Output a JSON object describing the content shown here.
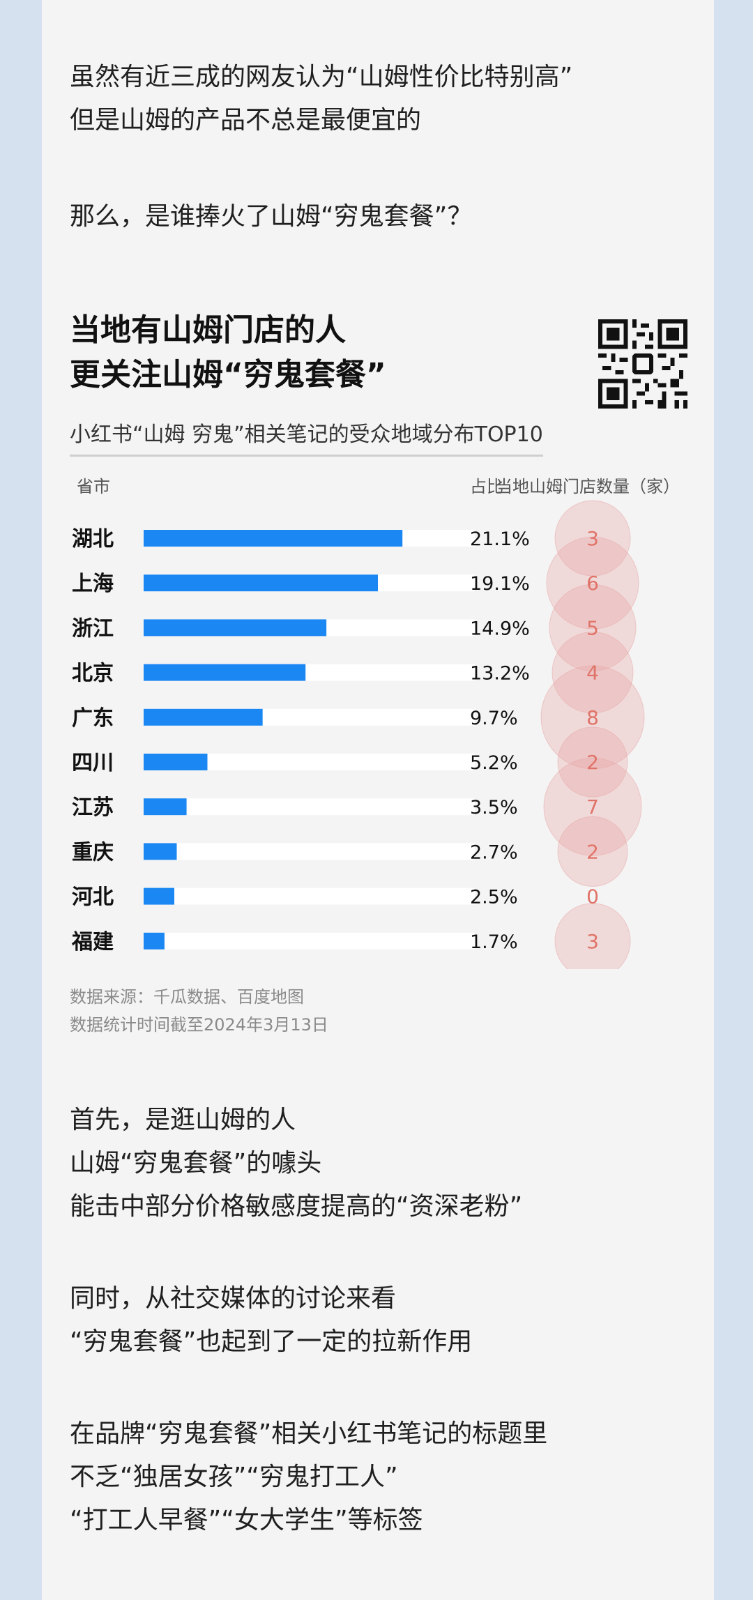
{
  "intro": {
    "line1": "虽然有近三成的网友认为“山姆性价比特别高”",
    "line2": "但是山姆的产品不总是最便宜的",
    "line3": "那么，是谁捧火了山姆“穷鬼套餐”？"
  },
  "chart_title": {
    "line1": "当地有山姆门店的人",
    "line2": "更关注山姆“穷鬼套餐”"
  },
  "chart_data": {
    "type": "bar",
    "subtitle": "小红书“山姆 穷鬼”相关笔记的受众地域分布TOP10",
    "col_province": "省市",
    "col_share": "占比",
    "col_stores": "当地山姆门店数量（家）",
    "categories": [
      "湖北",
      "上海",
      "浙江",
      "北京",
      "广东",
      "四川",
      "江苏",
      "重庆",
      "河北",
      "福建"
    ],
    "values": [
      21.1,
      19.1,
      14.9,
      13.2,
      9.7,
      5.2,
      3.5,
      2.7,
      2.5,
      1.7
    ],
    "value_labels": [
      "21.1%",
      "19.1%",
      "14.9%",
      "13.2%",
      "9.7%",
      "5.2%",
      "3.5%",
      "2.7%",
      "2.5%",
      "1.7%"
    ],
    "stores": [
      3,
      6,
      5,
      4,
      8,
      2,
      7,
      2,
      0,
      3
    ],
    "xlim": [
      0,
      27
    ],
    "bar_color": "#1a87f2",
    "bubble_color": "#e8a6a6",
    "bubble_text_color": "#e07368"
  },
  "source": {
    "line1": "数据来源：千瓜数据、百度地图",
    "line2": "数据统计时间截至2024年3月13日"
  },
  "body": {
    "p1_l1": "首先，是逛山姆的人",
    "p1_l2": "山姆“穷鬼套餐”的噱头",
    "p1_l3": "能击中部分价格敏感度提高的“资深老粉”",
    "p2_l1": "同时，从社交媒体的讨论来看",
    "p2_l2": "“穷鬼套餐”也起到了一定的拉新作用",
    "p3_l1": "在品牌“穷鬼套餐”相关小红书笔记的标题里",
    "p3_l2": "不乏“独居女孩”“穷鬼打工人”",
    "p3_l3": "“打工人早餐”“女大学生”等标签"
  }
}
